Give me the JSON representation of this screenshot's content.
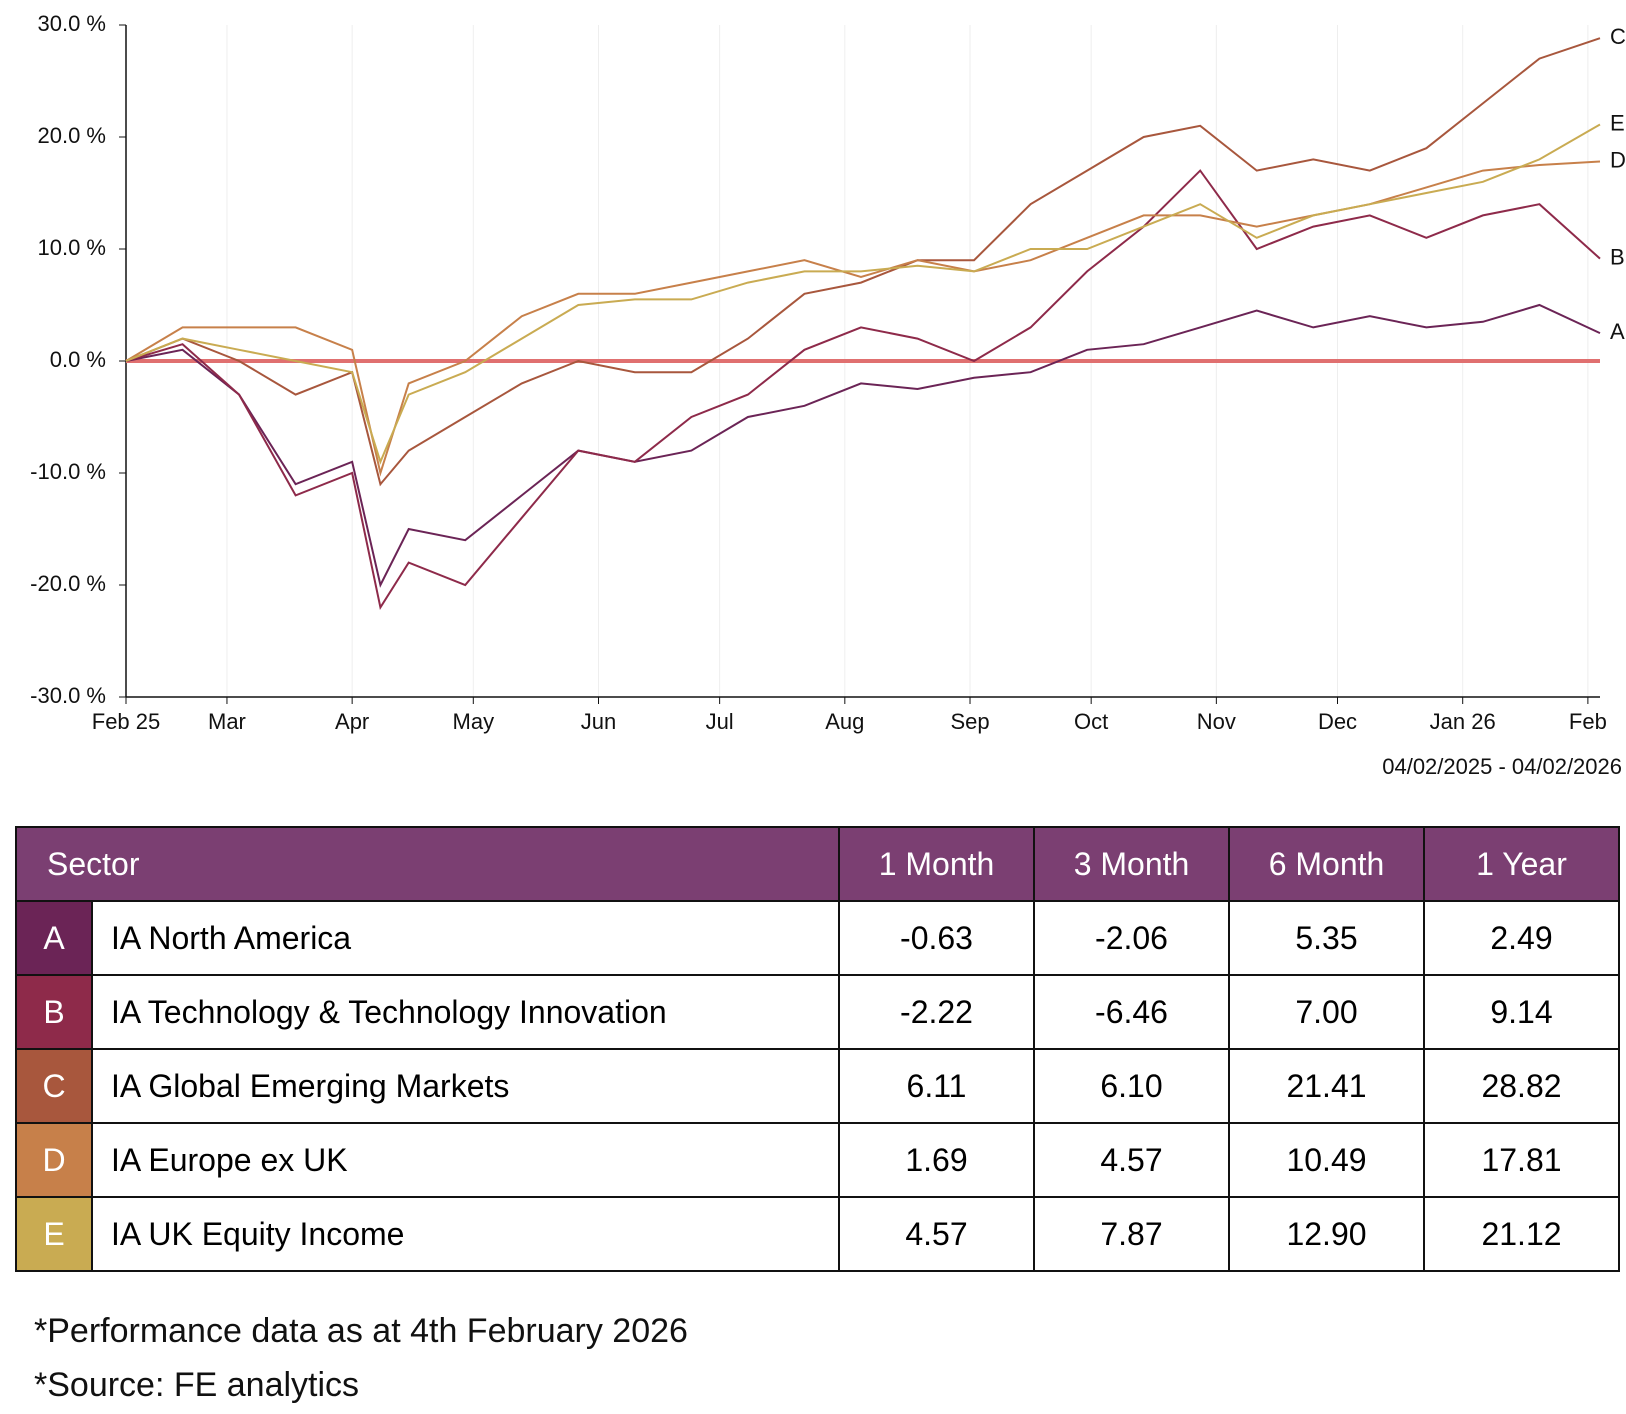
{
  "chart_data": {
    "type": "line",
    "x": [
      "2025-02-04",
      "2025-02-18",
      "2025-03-04",
      "2025-03-18",
      "2025-04-01",
      "2025-04-08",
      "2025-04-15",
      "2025-04-29",
      "2025-05-13",
      "2025-05-27",
      "2025-06-10",
      "2025-06-24",
      "2025-07-08",
      "2025-07-22",
      "2025-08-05",
      "2025-08-19",
      "2025-09-02",
      "2025-09-16",
      "2025-09-30",
      "2025-10-14",
      "2025-10-28",
      "2025-11-11",
      "2025-11-25",
      "2025-12-09",
      "2025-12-23",
      "2026-01-06",
      "2026-01-20",
      "2026-02-04"
    ],
    "series": [
      {
        "name": "A",
        "color": "#6b2456",
        "values": [
          0,
          1,
          -3,
          -11,
          -9,
          -20,
          -15,
          -16,
          -12,
          -8,
          -9,
          -8,
          -5,
          -4,
          -2,
          -2.5,
          -1.5,
          -1,
          1,
          1.5,
          3,
          4.5,
          3,
          4,
          3,
          3.5,
          5,
          2.49
        ]
      },
      {
        "name": "B",
        "color": "#8e2a4a",
        "values": [
          0,
          1.5,
          -3,
          -12,
          -10,
          -22,
          -18,
          -20,
          -14,
          -8,
          -9,
          -5,
          -3,
          1,
          3,
          2,
          0,
          3,
          8,
          12,
          17,
          10,
          12,
          13,
          11,
          13,
          14,
          9.14
        ]
      },
      {
        "name": "C",
        "color": "#a8573d",
        "values": [
          0,
          2,
          0,
          -3,
          -1,
          -11,
          -8,
          -5,
          -2,
          0,
          -1,
          -1,
          2,
          6,
          7,
          9,
          9,
          14,
          17,
          20,
          21,
          17,
          18,
          17,
          19,
          23,
          27,
          28.82
        ]
      },
      {
        "name": "D",
        "color": "#c7804a",
        "values": [
          0,
          3,
          3,
          3,
          1,
          -10,
          -2,
          0,
          4,
          6,
          6,
          7,
          8,
          9,
          7.5,
          9,
          8,
          9,
          11,
          13,
          13,
          12,
          13,
          14,
          15.5,
          17,
          17.5,
          17.81
        ]
      },
      {
        "name": "E",
        "color": "#c9ab52",
        "values": [
          0,
          2,
          1,
          0,
          -1,
          -9,
          -3,
          -1,
          2,
          5,
          5.5,
          5.5,
          7,
          8,
          8,
          8.5,
          8,
          10,
          10,
          12,
          14,
          11,
          13,
          14,
          15,
          16,
          18,
          21.12
        ]
      }
    ],
    "xlim": [
      "2025-02-04",
      "2026-02-04"
    ],
    "xticks": [
      {
        "value": "2025-02-04",
        "label": "Feb 25"
      },
      {
        "value": "2025-03-01",
        "label": "Mar"
      },
      {
        "value": "2025-04-01",
        "label": "Apr"
      },
      {
        "value": "2025-05-01",
        "label": "May"
      },
      {
        "value": "2025-06-01",
        "label": "Jun"
      },
      {
        "value": "2025-07-01",
        "label": "Jul"
      },
      {
        "value": "2025-08-01",
        "label": "Aug"
      },
      {
        "value": "2025-09-01",
        "label": "Sep"
      },
      {
        "value": "2025-10-01",
        "label": "Oct"
      },
      {
        "value": "2025-11-01",
        "label": "Nov"
      },
      {
        "value": "2025-12-01",
        "label": "Dec"
      },
      {
        "value": "2026-01-01",
        "label": "Jan 26"
      },
      {
        "value": "2026-02-01",
        "label": "Feb"
      }
    ],
    "ylim": [
      -30,
      30
    ],
    "yticks": [
      {
        "value": 30,
        "label": "30.0 %"
      },
      {
        "value": 20,
        "label": "20.0 %"
      },
      {
        "value": 10,
        "label": "10.0 %"
      },
      {
        "value": 0,
        "label": "0.0 %"
      },
      {
        "value": -10,
        "label": "-10.0 %"
      },
      {
        "value": -20,
        "label": "-20.0 %"
      },
      {
        "value": -30,
        "label": "-30.0 %"
      }
    ],
    "grid": "x",
    "zero_line_color": "#e07070",
    "date_range": "04/02/2025 - 04/02/2026"
  },
  "table": {
    "header_color": "#7b3f72",
    "columns": [
      "Sector",
      "1 Month",
      "3 Month",
      "6 Month",
      "1 Year"
    ],
    "rows": [
      {
        "letter": "A",
        "color": "#6b2456",
        "sector": "IA North America",
        "cells": [
          "-0.63",
          "-2.06",
          "5.35",
          "2.49"
        ]
      },
      {
        "letter": "B",
        "color": "#8e2a4a",
        "sector": "IA Technology & Technology Innovation",
        "cells": [
          "-2.22",
          "-6.46",
          "7.00",
          "9.14"
        ]
      },
      {
        "letter": "C",
        "color": "#a8573d",
        "sector": "IA Global Emerging Markets",
        "cells": [
          "6.11",
          "6.10",
          "21.41",
          "28.82"
        ]
      },
      {
        "letter": "D",
        "color": "#c7804a",
        "sector": "IA Europe ex UK",
        "cells": [
          "1.69",
          "4.57",
          "10.49",
          "17.81"
        ]
      },
      {
        "letter": "E",
        "color": "#c9ab52",
        "sector": "IA UK Equity Income",
        "cells": [
          "4.57",
          "7.87",
          "12.90",
          "21.12"
        ]
      }
    ]
  },
  "notes": [
    "*Performance data as at 4th February 2026",
    "*Source: FE analytics"
  ]
}
